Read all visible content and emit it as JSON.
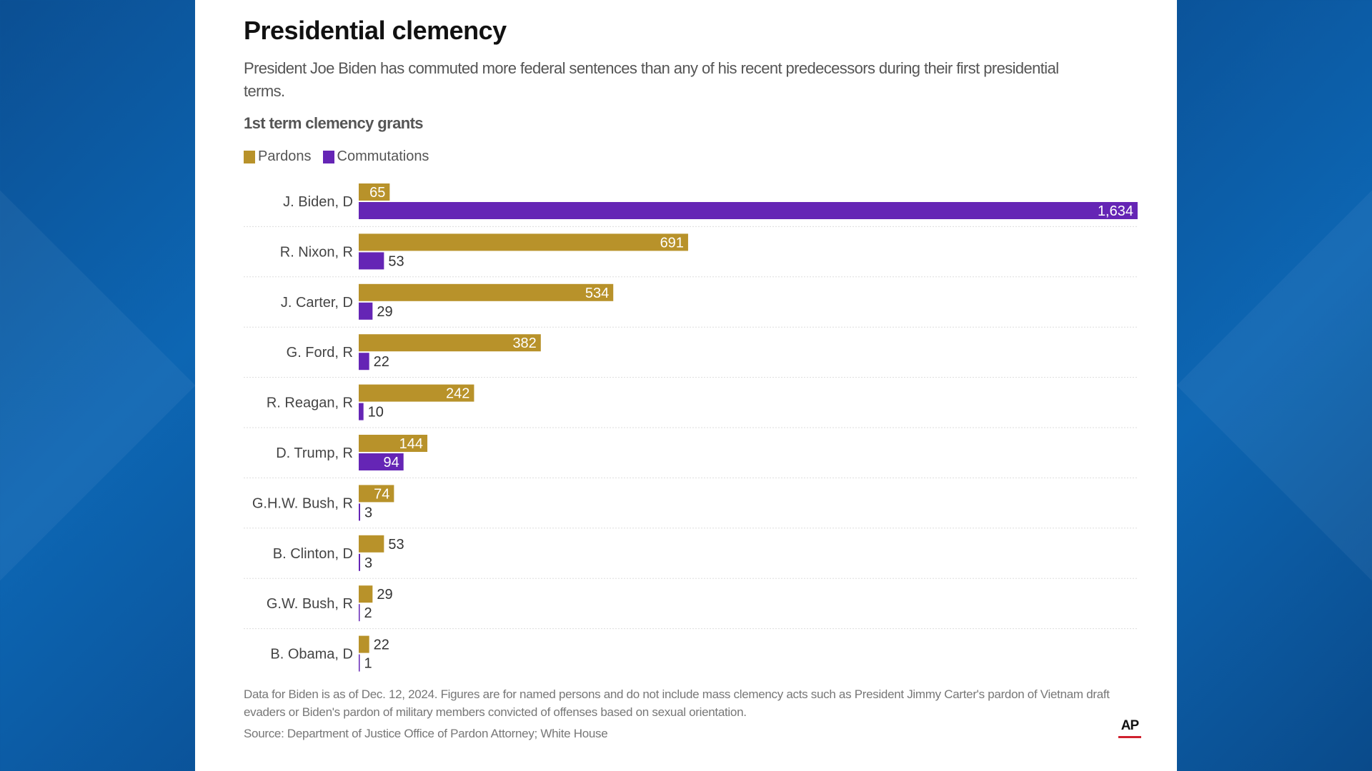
{
  "header": {
    "title": "Presidential clemency",
    "subtitle": "President Joe Biden has commuted more federal sentences than any of his recent predecessors during their first presidential terms."
  },
  "chart_data": {
    "type": "bar",
    "orientation": "horizontal",
    "title": "1st term clemency grants",
    "categories": [
      "J. Biden, D",
      "R. Nixon, R",
      "J. Carter, D",
      "G. Ford, R",
      "R. Reagan, R",
      "D. Trump, R",
      "G.H.W. Bush, R",
      "B. Clinton, D",
      "G.W. Bush, R",
      "B. Obama, D"
    ],
    "series": [
      {
        "name": "Pardons",
        "color": "#b8922a",
        "values": [
          65,
          691,
          534,
          382,
          242,
          144,
          74,
          53,
          29,
          22
        ]
      },
      {
        "name": "Commutations",
        "color": "#6525b5",
        "values": [
          1634,
          53,
          29,
          22,
          10,
          94,
          3,
          3,
          2,
          1
        ]
      }
    ],
    "xlim": [
      0,
      1634
    ],
    "legend": "top-left",
    "grid": false
  },
  "footer": {
    "notes": "Data for Biden is as of Dec. 12, 2024. Figures are for named persons and do not include mass clemency acts such as President Jimmy Carter's pardon of Vietnam draft evaders or Biden's pardon of military members convicted of offenses based on sexual orientation.",
    "source": "Source: Department of Justice Office of Pardon Attorney; White House",
    "logo": "AP"
  }
}
